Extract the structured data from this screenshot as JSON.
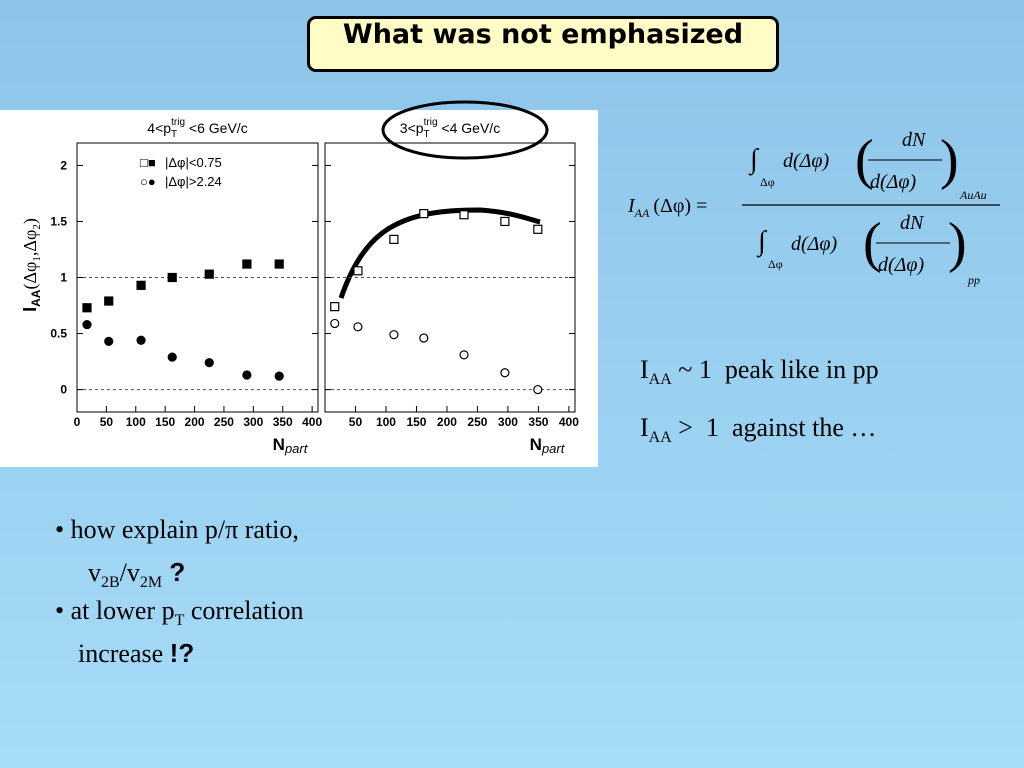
{
  "title": "What was not emphasized",
  "figure": {
    "xlim": [
      0,
      410
    ],
    "ylim": [
      -0.2,
      2.2
    ],
    "yticks": [
      0,
      0.5,
      1,
      1.5,
      2
    ],
    "reference_lines": [
      0,
      1
    ],
    "y_label": [
      "I",
      "AA",
      "(Δφ",
      "1",
      ",Δφ",
      "2",
      ")"
    ],
    "x_label": [
      "N",
      "part"
    ],
    "legend": [
      "|Δφ|<0.75",
      "|Δφ|>2.24"
    ],
    "panels": [
      {
        "title": [
          "4<p",
          "T",
          "trig",
          " <6 GeV/c"
        ],
        "filled": true,
        "xticks": [
          0,
          50,
          100,
          150,
          200,
          250,
          300,
          350,
          400
        ],
        "series": [
          {
            "name": "|Δφ|<0.75",
            "marker": "square",
            "x": [
              17,
              54,
              109,
              162,
              225,
              289,
              344
            ],
            "values": [
              0.73,
              0.79,
              0.93,
              1.0,
              1.03,
              1.12,
              1.12
            ]
          },
          {
            "name": "|Δφ|>2.24",
            "marker": "circle",
            "x": [
              17,
              54,
              109,
              162,
              225,
              289,
              344
            ],
            "values": [
              0.58,
              0.43,
              0.44,
              0.29,
              0.24,
              0.13,
              0.12
            ]
          }
        ]
      },
      {
        "title": [
          "3<p",
          "T",
          "trig",
          " <4 GeV/c"
        ],
        "filled": false,
        "xticks": [
          50,
          100,
          150,
          200,
          250,
          300,
          350,
          400
        ],
        "series": [
          {
            "name": "|Δφ|<0.75",
            "marker": "square",
            "x": [
              16,
              54,
              113,
              162,
              228,
              295,
              349
            ],
            "values": [
              0.74,
              1.06,
              1.34,
              1.57,
              1.56,
              1.5,
              1.43
            ]
          },
          {
            "name": "|Δφ|>2.24",
            "marker": "circle",
            "x": [
              16,
              54,
              113,
              162,
              228,
              295,
              349
            ],
            "values": [
              0.59,
              0.56,
              0.49,
              0.46,
              0.31,
              0.15,
              0.0
            ]
          }
        ]
      }
    ]
  },
  "formula": {
    "I": "I",
    "AA": "AA",
    "lhs_arg": "(Δφ) =",
    "integral": "∫",
    "integral_sub": "Δφ",
    "d": "d(Δφ)",
    "dN": "dN",
    "num_sub": "AuAu",
    "den_sub": "pp"
  },
  "notes": [
    {
      "main": "I",
      "sub": "AA",
      "rest": " ~ 1  peak like in pp"
    },
    {
      "main": "I",
      "sub": "AA",
      "rest": " >  1  against the …"
    }
  ],
  "bullets": [
    {
      "text": "• how explain p/π ratio,"
    },
    {
      "parts": [
        "v",
        "2B",
        "/v",
        "2M",
        " ?"
      ]
    },
    {
      "parts": [
        "• at lower p",
        "T",
        " correlation"
      ]
    },
    {
      "parts": [
        "increase ",
        "!?"
      ]
    }
  ]
}
